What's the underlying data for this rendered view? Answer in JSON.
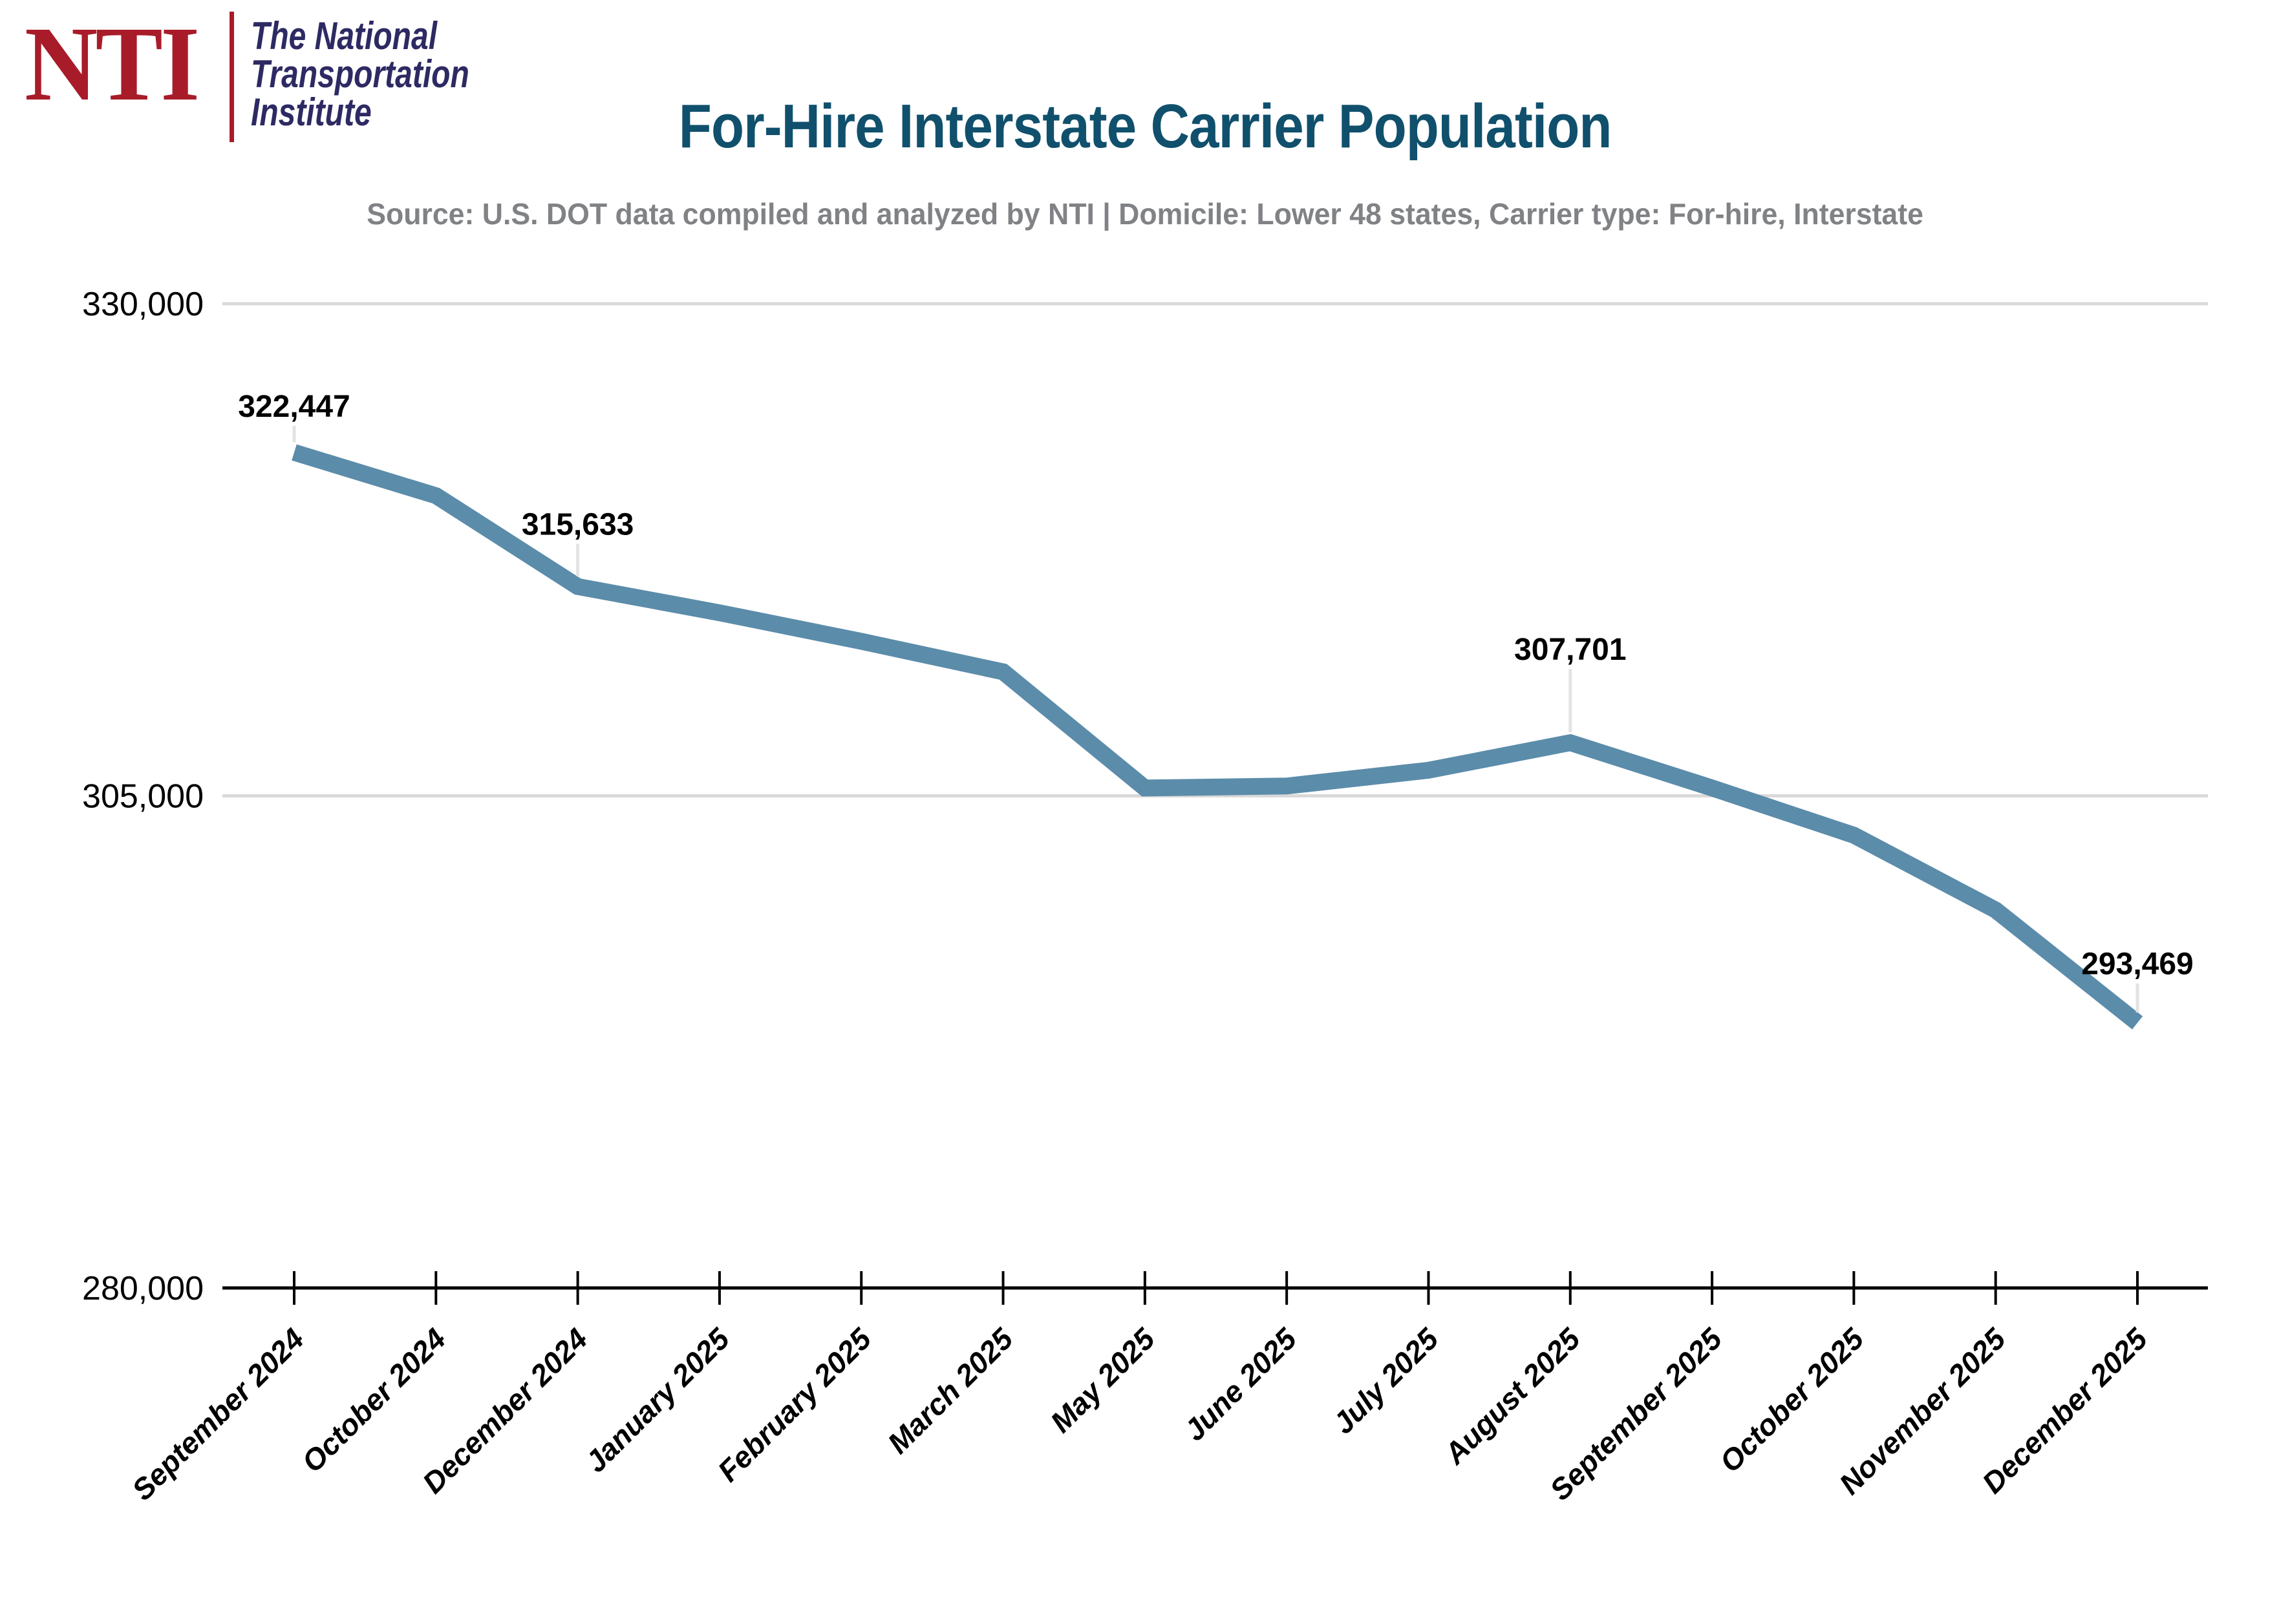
{
  "logo": {
    "abbr": "NTI",
    "name_lines": [
      "The National",
      "Transportation",
      "Institute"
    ]
  },
  "header": {
    "title": "For-Hire Interstate Carrier Population",
    "subtitle": "Source: U.S. DOT data compiled and analyzed by NTI | Domicile: Lower 48 states, Carrier type: For-hire, Interstate"
  },
  "colors": {
    "logo_red": "#a81c2a",
    "logo_navy": "#2d2a63",
    "title": "#10506c",
    "subtitle": "#808285",
    "line": "#5b8caa",
    "grid": "#d9d9d9",
    "axis": "#000000",
    "labels": "#000000",
    "leader": "#e3e3e3"
  },
  "chart_data": {
    "type": "line",
    "title": "For-Hire Interstate Carrier Population",
    "xlabel": "",
    "ylabel": "",
    "categories": [
      "September 2024",
      "October 2024",
      "December 2024",
      "January 2025",
      "February 2025",
      "March 2025",
      "May 2025",
      "June 2025",
      "July 2025",
      "August 2025",
      "September 2025",
      "October 2025",
      "November 2025",
      "December 2025"
    ],
    "values": [
      322447,
      320250,
      315633,
      314300,
      312850,
      311300,
      305400,
      305500,
      306300,
      307701,
      305400,
      303000,
      299200,
      293469
    ],
    "annotated_points": [
      {
        "index": 0,
        "label": "322,447",
        "dy": 55
      },
      {
        "index": 2,
        "label": "315,633",
        "dy": 80
      },
      {
        "index": 9,
        "label": "307,701",
        "dy": 128
      },
      {
        "index": 13,
        "label": "293,469",
        "dy": 75
      }
    ],
    "y_ticks": [
      {
        "value": 330000,
        "label": "330,000",
        "grid": true
      },
      {
        "value": 305000,
        "label": "305,000",
        "grid": true
      },
      {
        "value": 280000,
        "label": "280,000",
        "grid": false
      }
    ],
    "ylim": [
      280000,
      330000
    ],
    "legend": "none",
    "grid": "horizontal"
  }
}
